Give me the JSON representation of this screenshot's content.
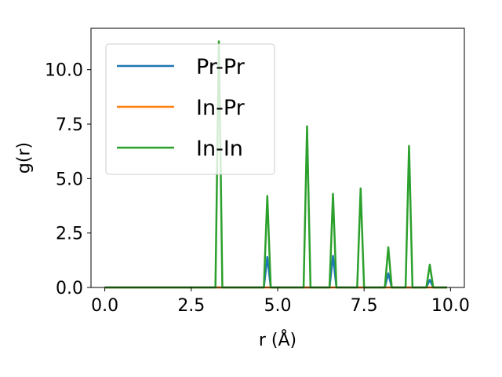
{
  "chart_data": {
    "type": "line",
    "xlabel": "r (Å)",
    "ylabel": "g(r)",
    "xlim": [
      -0.4,
      10.4
    ],
    "ylim": [
      0,
      11.9
    ],
    "x_ticks": [
      0.0,
      2.5,
      5.0,
      7.5,
      10.0
    ],
    "x_tick_labels": [
      "0.0",
      "2.5",
      "5.0",
      "7.5",
      "10.0"
    ],
    "y_ticks": [
      0.0,
      2.5,
      5.0,
      7.5,
      10.0
    ],
    "y_tick_labels": [
      "0.0",
      "2.5",
      "5.0",
      "7.5",
      "10.0"
    ],
    "grid": false,
    "legend_position": "top-left",
    "series": [
      {
        "name": "Pr-Pr",
        "color": "#1f77b4",
        "x": [
          0.0,
          4.6,
          4.7,
          4.8,
          6.5,
          6.6,
          6.7,
          8.1,
          8.2,
          8.3,
          9.3,
          9.4,
          9.5,
          9.9
        ],
        "y": [
          0,
          0,
          1.4,
          0,
          0,
          1.45,
          0,
          0,
          0.65,
          0,
          0,
          0.35,
          0,
          0
        ]
      },
      {
        "name": "In-Pr",
        "color": "#ff7f0e",
        "x": [
          0.0,
          9.9
        ],
        "y": [
          0,
          0
        ]
      },
      {
        "name": "In-In",
        "color": "#2ca02c",
        "x": [
          0.0,
          3.2,
          3.3,
          3.4,
          4.6,
          4.7,
          4.8,
          5.75,
          5.85,
          5.95,
          6.5,
          6.6,
          6.7,
          7.3,
          7.4,
          7.5,
          8.1,
          8.2,
          8.3,
          8.7,
          8.8,
          8.9,
          9.3,
          9.4,
          9.5,
          9.9
        ],
        "y": [
          0,
          0,
          11.3,
          0,
          0,
          4.2,
          0,
          0,
          7.4,
          0,
          0,
          4.3,
          0,
          0,
          4.55,
          0,
          0,
          1.85,
          0,
          0,
          6.5,
          0,
          0,
          1.05,
          0,
          0
        ]
      }
    ]
  }
}
